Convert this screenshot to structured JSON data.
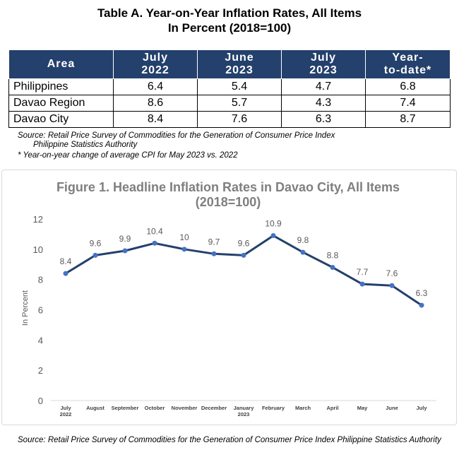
{
  "table": {
    "title_line1": "Table A. Year-on-Year Inflation Rates, All Items",
    "title_line2": "In Percent (2018=100)",
    "headers": [
      {
        "l1": "Area",
        "l2": ""
      },
      {
        "l1": "July",
        "l2": "2022"
      },
      {
        "l1": "June",
        "l2": "2023"
      },
      {
        "l1": "July",
        "l2": "2023"
      },
      {
        "l1": "Year-",
        "l2": "to-date*"
      }
    ],
    "rows": [
      {
        "area": "Philippines",
        "v1": "6.4",
        "v2": "5.4",
        "v3": "4.7",
        "v4": "6.8"
      },
      {
        "area": "Davao Region",
        "v1": "8.6",
        "v2": "5.7",
        "v3": "4.3",
        "v4": "7.4"
      },
      {
        "area": "Davao City",
        "v1": "8.4",
        "v2": "7.6",
        "v3": "6.3",
        "v4": "8.7"
      }
    ],
    "source_line1": "Source: Retail Price Survey of Commodities for the Generation of Consumer Price Index",
    "source_line2": "Philippine Statistics Authority",
    "footnote": "* Year-on-year change of average CPI for May 2023 vs. 2022"
  },
  "chart_data": {
    "type": "line",
    "title_line1": "Figure 1. Headline Inflation Rates in Davao City, All Items",
    "title_line2": "(2018=100)",
    "ylabel": "In Percent",
    "ylim": [
      0,
      12
    ],
    "yticks": [
      "0",
      "2",
      "4",
      "6",
      "8",
      "10",
      "12"
    ],
    "categories": [
      {
        "l1": "July",
        "l2": "2022"
      },
      {
        "l1": "August",
        "l2": ""
      },
      {
        "l1": "September",
        "l2": ""
      },
      {
        "l1": "October",
        "l2": ""
      },
      {
        "l1": "November",
        "l2": ""
      },
      {
        "l1": "December",
        "l2": ""
      },
      {
        "l1": "January",
        "l2": "2023"
      },
      {
        "l1": "February",
        "l2": ""
      },
      {
        "l1": "March",
        "l2": ""
      },
      {
        "l1": "April",
        "l2": ""
      },
      {
        "l1": "May",
        "l2": ""
      },
      {
        "l1": "June",
        "l2": ""
      },
      {
        "l1": "July",
        "l2": ""
      }
    ],
    "values": [
      8.4,
      9.6,
      9.9,
      10.4,
      10,
      9.7,
      9.6,
      10.9,
      9.8,
      8.8,
      7.7,
      7.6,
      6.3
    ],
    "value_labels": [
      "8.4",
      "9.6",
      "9.9",
      "10.4",
      "10",
      "9.7",
      "9.6",
      "10.9",
      "9.8",
      "8.8",
      "7.7",
      "7.6",
      "6.3"
    ],
    "line_color": "#24406c",
    "marker_color": "#4472c4",
    "grid": false
  },
  "footer": {
    "source": "Source: Retail Price Survey of Commodities for the Generation of Consumer Price Index Philippine Statistics Authority"
  }
}
